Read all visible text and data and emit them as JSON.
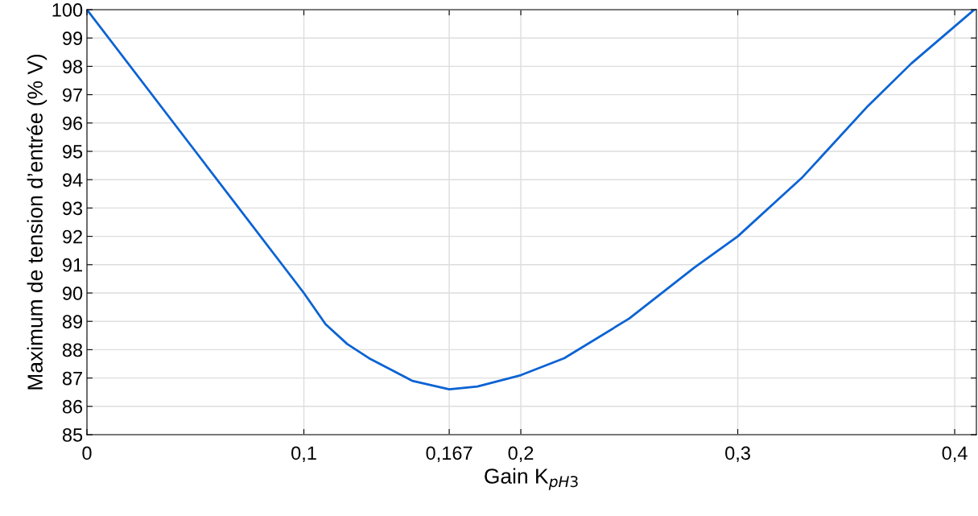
{
  "chart_data": {
    "type": "line",
    "xlabel": "Gain K$_{pH3}$",
    "ylabel": "Maximum de tension d’entrée (% V)",
    "series": [
      {
        "color": "#0b63d3",
        "x": [
          0,
          0.05,
          0.1,
          0.11,
          0.12,
          0.13,
          0.14,
          0.15,
          0.167,
          0.18,
          0.19,
          0.2,
          0.22,
          0.25,
          0.28,
          0.3,
          0.33,
          0.36,
          0.38,
          0.409
        ],
        "values": [
          100,
          95,
          90,
          88.9,
          88.2,
          87.7,
          87.3,
          86.9,
          86.6,
          86.7,
          86.9,
          87.1,
          87.7,
          89.1,
          90.9,
          92.0,
          94.1,
          96.6,
          98.1,
          100
        ]
      }
    ],
    "xlim": [
      0,
      0.41
    ],
    "ylim": [
      85,
      100
    ],
    "xticks": [
      0,
      {
        "value": 0.1,
        "label": "0,1"
      },
      {
        "value": 0.167,
        "label": "0,167"
      },
      {
        "value": 0.2,
        "label": "0,2"
      },
      {
        "value": 0.3,
        "label": "0,3"
      },
      {
        "value": 0.4,
        "label": "0,4"
      }
    ],
    "yticks": [
      85,
      86,
      87,
      88,
      89,
      90,
      91,
      92,
      93,
      94,
      95,
      96,
      97,
      98,
      99,
      100
    ],
    "grid": true,
    "marker": "none",
    "line_style": "solid"
  }
}
